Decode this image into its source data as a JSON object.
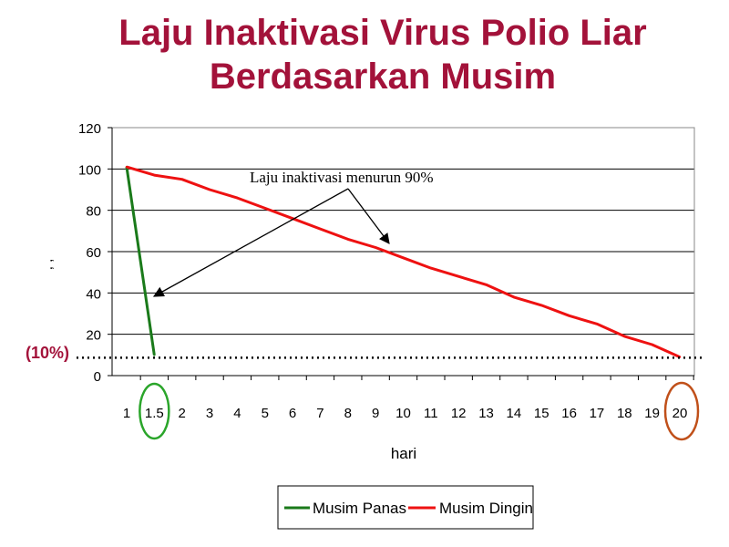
{
  "title_line1": "Laju Inaktivasi Virus Polio Liar",
  "title_line2": "Berdasarkan Musim",
  "colors": {
    "title": "#a3123a",
    "panas": "#1a7a1a",
    "dingin": "#ee1111",
    "circle_green": "#2aa52a",
    "circle_orange": "#c0501a"
  },
  "chart_data": {
    "type": "line",
    "xlabel": "hari",
    "ylabel": ", ,",
    "ylim": [
      0,
      120
    ],
    "yticks": [
      "0",
      "20",
      "40",
      "60",
      "80",
      "100",
      "120"
    ],
    "xticks": [
      "1",
      "1.5",
      "2",
      "3",
      "4",
      "5",
      "6",
      "7",
      "8",
      "9",
      "10",
      "11",
      "12",
      "13",
      "14",
      "15",
      "16",
      "17",
      "18",
      "19",
      "20"
    ],
    "series": [
      {
        "name": "Musim Panas",
        "points": [
          [
            1,
            101
          ],
          [
            1.5,
            10
          ]
        ]
      },
      {
        "name": "Musim Dingin",
        "points": [
          [
            1,
            101
          ],
          [
            1.5,
            97
          ],
          [
            2,
            95
          ],
          [
            3,
            90
          ],
          [
            4,
            86
          ],
          [
            5,
            81
          ],
          [
            6,
            76
          ],
          [
            7,
            71
          ],
          [
            8,
            66
          ],
          [
            9,
            62
          ],
          [
            10,
            57
          ],
          [
            11,
            52
          ],
          [
            12,
            48
          ],
          [
            13,
            44
          ],
          [
            14,
            38
          ],
          [
            15,
            34
          ],
          [
            16,
            29
          ],
          [
            17,
            25
          ],
          [
            18,
            19
          ],
          [
            19,
            15
          ],
          [
            20,
            9
          ]
        ]
      }
    ],
    "annotation": "Laju inaktivasi menurun 90%",
    "reference_line": {
      "value": 10,
      "label": "(10%)"
    },
    "highlighted_ticks": [
      "1.5",
      "20"
    ],
    "legend_position": "bottom",
    "grid": true
  }
}
